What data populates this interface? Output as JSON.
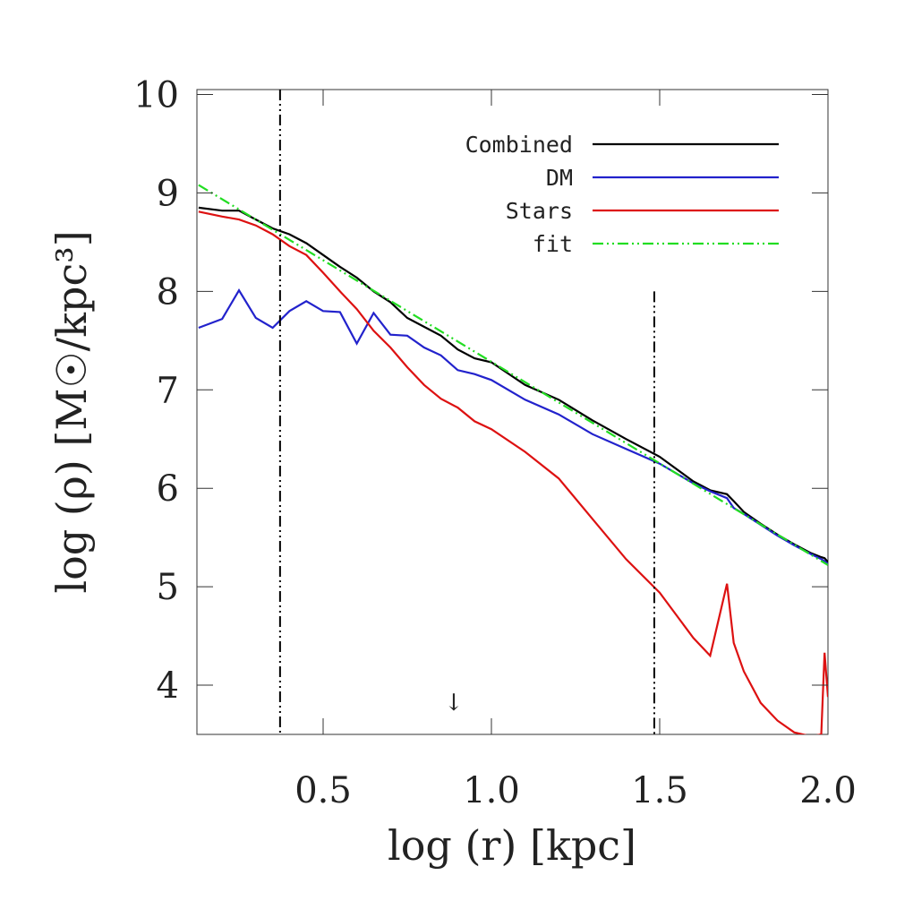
{
  "chart_data": {
    "type": "line",
    "xlabel": "log (r) [kpc]",
    "ylabel": "log (ρ) [M☉/kpc³]",
    "xlim": [
      0.125,
      2.0
    ],
    "ylim": [
      3.5,
      10.05
    ],
    "xticks": [
      0.5,
      {
        "value": 1,
        "label": "1.0"
      },
      1.5,
      {
        "value": 2,
        "label": "2.0"
      }
    ],
    "yticks": [
      4,
      5,
      6,
      7,
      8,
      9,
      10
    ],
    "legend": "top-right",
    "x": [
      0.13,
      0.2,
      0.25,
      0.3,
      0.35,
      0.4,
      0.45,
      0.5,
      0.55,
      0.6,
      0.65,
      0.7,
      0.75,
      0.8,
      0.85,
      0.9,
      0.95,
      1.0,
      1.1,
      1.2,
      1.3,
      1.4,
      1.5,
      1.6,
      1.65,
      1.7,
      1.72,
      1.75,
      1.8,
      1.85,
      1.9,
      1.95,
      1.98,
      1.99,
      2.0
    ],
    "series": [
      {
        "name": "Combined",
        "color": "#000000",
        "dash": "solid",
        "values": [
          8.85,
          8.82,
          8.82,
          8.73,
          8.64,
          8.58,
          8.49,
          8.37,
          8.25,
          8.14,
          8.0,
          7.89,
          7.73,
          7.64,
          7.55,
          7.41,
          7.32,
          7.28,
          7.05,
          6.9,
          6.69,
          6.5,
          6.32,
          6.07,
          5.98,
          5.94,
          5.87,
          5.76,
          5.64,
          5.53,
          5.43,
          5.34,
          5.3,
          5.29,
          5.25
        ]
      },
      {
        "name": "DM",
        "color": "#2222cc",
        "dash": "solid",
        "values": [
          7.63,
          7.72,
          8.01,
          7.73,
          7.63,
          7.8,
          7.9,
          7.8,
          7.79,
          7.47,
          7.78,
          7.56,
          7.55,
          7.43,
          7.35,
          7.2,
          7.16,
          7.1,
          6.9,
          6.75,
          6.55,
          6.4,
          6.25,
          6.05,
          5.97,
          5.9,
          5.8,
          5.74,
          5.63,
          5.52,
          5.42,
          5.33,
          5.28,
          5.26,
          5.23
        ]
      },
      {
        "name": "Stars",
        "color": "#dd1111",
        "dash": "solid",
        "values": [
          8.81,
          8.76,
          8.73,
          8.67,
          8.58,
          8.46,
          8.37,
          8.19,
          8.0,
          7.82,
          7.6,
          7.43,
          7.23,
          7.05,
          6.91,
          6.82,
          6.68,
          6.6,
          6.37,
          6.1,
          5.69,
          5.28,
          4.94,
          4.48,
          4.3,
          5.03,
          4.43,
          4.14,
          3.82,
          3.64,
          3.52,
          3.48,
          3.5,
          4.33,
          3.88
        ]
      },
      {
        "name": "fit",
        "color": "#22dd22",
        "dash": "dashdotdot",
        "x": [
          0.13,
          2.0
        ],
        "values": [
          9.08,
          5.22
        ]
      }
    ],
    "vlines": [
      {
        "x": 0.372
      },
      {
        "x": 1.484,
        "top": 8.0
      }
    ],
    "annotations": [
      {
        "text": "↓",
        "x": 0.888,
        "y": 3.82
      }
    ]
  }
}
